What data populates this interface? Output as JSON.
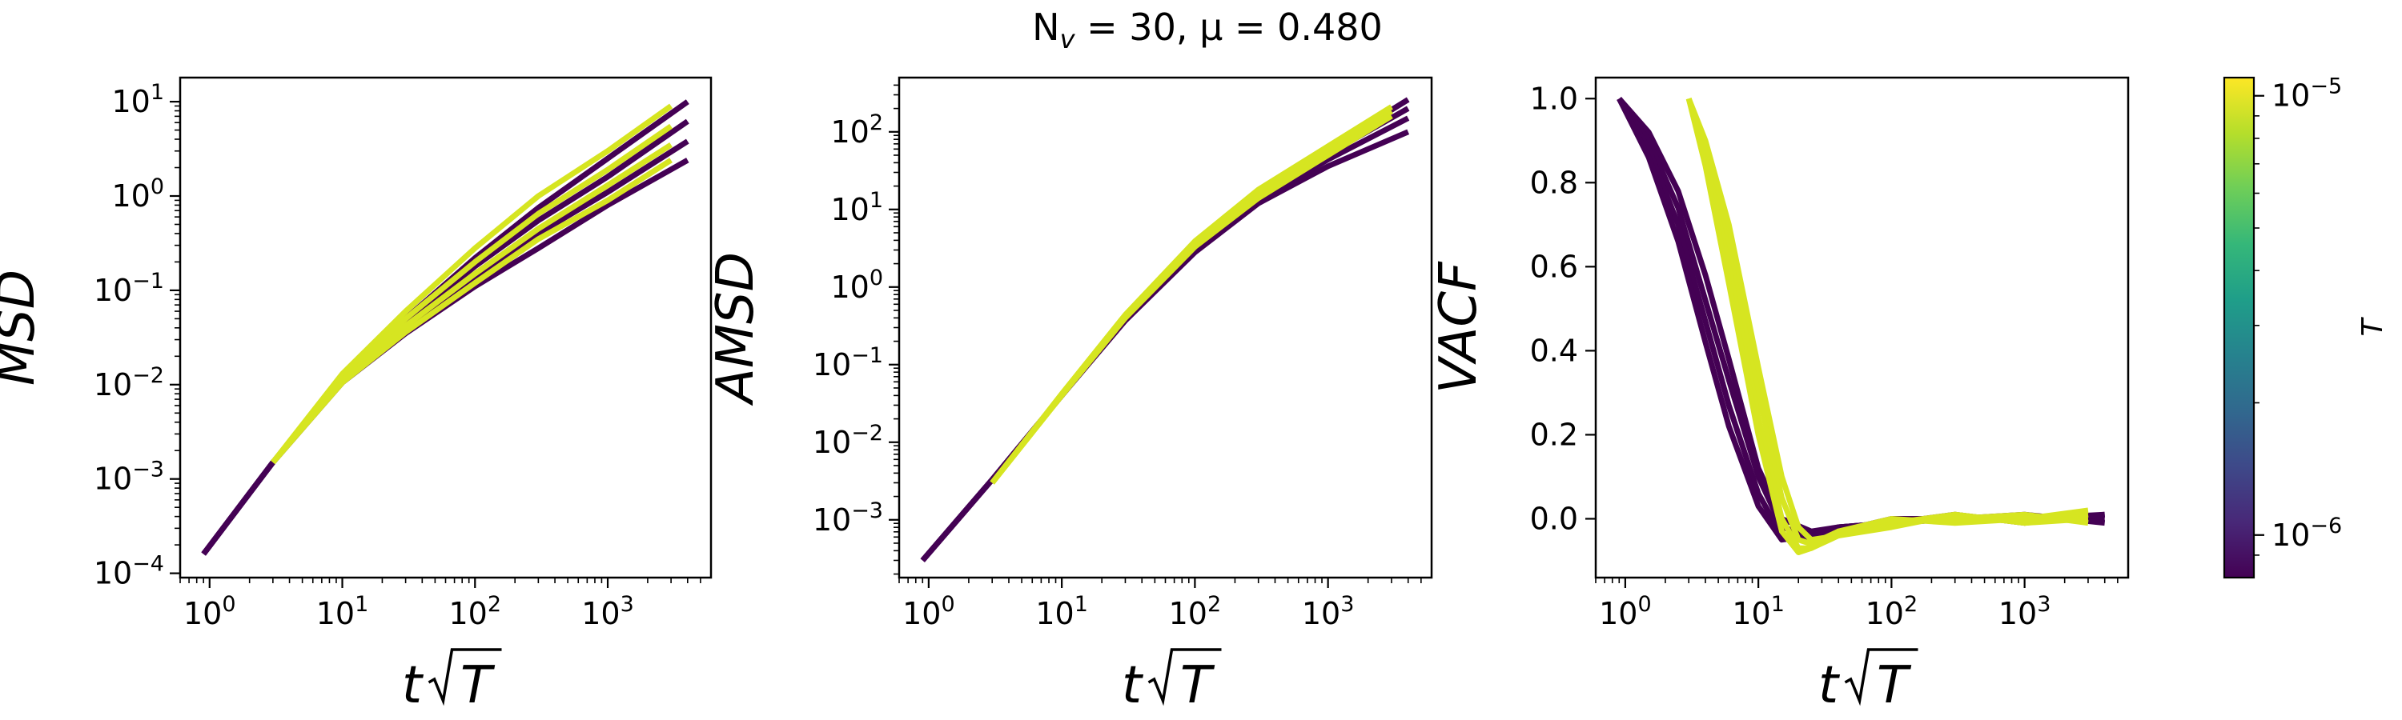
{
  "figure": {
    "title": "N_v = 30, μ = 0.480",
    "title_parts": {
      "main": "N",
      "sub": "v",
      "rest": " = 30, μ = 0.480"
    }
  },
  "colorbar": {
    "label": "T",
    "scale": "log",
    "range": [
      8e-07,
      1.1e-05
    ],
    "ticks": [
      {
        "value": 1e-05,
        "base": "10",
        "exp": "−5"
      },
      {
        "value": 1e-06,
        "base": "10",
        "exp": "−6"
      }
    ],
    "colormap": [
      "#440154",
      "#482878",
      "#3e4989",
      "#31688e",
      "#26828e",
      "#1f9e89",
      "#35b779",
      "#6ece58",
      "#b5de2b",
      "#fde725"
    ]
  },
  "x_axis_label": {
    "main": "t",
    "radical": "T"
  },
  "chart_data": [
    {
      "type": "line",
      "ylabel": "MSD",
      "xscale": "log",
      "yscale": "log",
      "xlim": [
        0.6,
        6000
      ],
      "ylim": [
        9e-05,
        18
      ],
      "xticks": [
        {
          "value": 1,
          "base": "10",
          "exp": "0"
        },
        {
          "value": 10,
          "base": "10",
          "exp": "1"
        },
        {
          "value": 100,
          "base": "10",
          "exp": "2"
        },
        {
          "value": 1000,
          "base": "10",
          "exp": "3"
        }
      ],
      "yticks": [
        {
          "value": 0.0001,
          "base": "10",
          "exp": "−4"
        },
        {
          "value": 0.001,
          "base": "10",
          "exp": "−3"
        },
        {
          "value": 0.01,
          "base": "10",
          "exp": "−2"
        },
        {
          "value": 0.1,
          "base": "10",
          "exp": "−1"
        },
        {
          "value": 1,
          "base": "10",
          "exp": "0"
        },
        {
          "value": 10,
          "base": "10",
          "exp": "1"
        }
      ],
      "series": [
        {
          "color": "#440154",
          "x": [
            0.9,
            3,
            10,
            30,
            100,
            300,
            1000,
            4000
          ],
          "y": [
            0.00016,
            0.0015,
            0.0115,
            0.045,
            0.18,
            0.55,
            1.6,
            6.2
          ]
        },
        {
          "color": "#440154",
          "x": [
            0.9,
            3,
            10,
            30,
            100,
            300,
            1000,
            4000
          ],
          "y": [
            0.00016,
            0.0015,
            0.011,
            0.04,
            0.14,
            0.4,
            1.1,
            3.8
          ]
        },
        {
          "color": "#440154",
          "x": [
            0.9,
            3,
            10,
            30,
            100,
            300,
            1000,
            4000
          ],
          "y": [
            0.00016,
            0.0015,
            0.0105,
            0.035,
            0.11,
            0.28,
            0.8,
            2.4
          ]
        },
        {
          "color": "#440154",
          "x": [
            0.9,
            3,
            10,
            30,
            100,
            300,
            1000,
            4000
          ],
          "y": [
            0.00016,
            0.0015,
            0.012,
            0.05,
            0.22,
            0.75,
            2.5,
            10
          ]
        },
        {
          "color": "#d6e521",
          "x": [
            3,
            10,
            30,
            100,
            300,
            1000,
            3000
          ],
          "y": [
            0.0015,
            0.013,
            0.06,
            0.28,
            1.0,
            3.0,
            9
          ]
        },
        {
          "color": "#d6e521",
          "x": [
            3,
            10,
            30,
            100,
            300,
            1000,
            3000
          ],
          "y": [
            0.0015,
            0.012,
            0.05,
            0.2,
            0.65,
            1.9,
            5.5
          ]
        },
        {
          "color": "#d6e521",
          "x": [
            3,
            10,
            30,
            100,
            300,
            1000,
            3000
          ],
          "y": [
            0.0015,
            0.011,
            0.042,
            0.15,
            0.45,
            1.3,
            3.5
          ]
        },
        {
          "color": "#d6e521",
          "x": [
            3,
            10,
            30,
            100,
            300,
            1000,
            3000
          ],
          "y": [
            0.0015,
            0.0105,
            0.036,
            0.12,
            0.35,
            0.9,
            2.4
          ]
        }
      ]
    },
    {
      "type": "line",
      "ylabel": "AMSD",
      "xscale": "log",
      "yscale": "log",
      "xlim": [
        0.6,
        6000
      ],
      "ylim": [
        0.00018,
        500
      ],
      "xticks": [
        {
          "value": 1,
          "base": "10",
          "exp": "0"
        },
        {
          "value": 10,
          "base": "10",
          "exp": "1"
        },
        {
          "value": 100,
          "base": "10",
          "exp": "2"
        },
        {
          "value": 1000,
          "base": "10",
          "exp": "3"
        }
      ],
      "yticks": [
        {
          "value": 0.001,
          "base": "10",
          "exp": "−3"
        },
        {
          "value": 0.01,
          "base": "10",
          "exp": "−2"
        },
        {
          "value": 0.1,
          "base": "10",
          "exp": "−1"
        },
        {
          "value": 1,
          "base": "10",
          "exp": "0"
        },
        {
          "value": 10,
          "base": "10",
          "exp": "1"
        },
        {
          "value": 100,
          "base": "10",
          "exp": "2"
        }
      ],
      "series": [
        {
          "color": "#440154",
          "x": [
            0.9,
            3,
            10,
            30,
            100,
            300,
            1000,
            4000
          ],
          "y": [
            0.0003,
            0.0033,
            0.04,
            0.37,
            2.8,
            12,
            36,
            100
          ]
        },
        {
          "color": "#440154",
          "x": [
            0.9,
            3,
            10,
            30,
            100,
            300,
            1000,
            4000
          ],
          "y": [
            0.0003,
            0.0033,
            0.04,
            0.38,
            3.0,
            13,
            44,
            150
          ]
        },
        {
          "color": "#440154",
          "x": [
            0.9,
            3,
            10,
            30,
            100,
            300,
            1000,
            4000
          ],
          "y": [
            0.0003,
            0.0033,
            0.04,
            0.39,
            3.2,
            14,
            52,
            200
          ]
        },
        {
          "color": "#440154",
          "x": [
            0.9,
            3,
            10,
            30,
            100,
            300,
            1000,
            4000
          ],
          "y": [
            0.0003,
            0.0033,
            0.04,
            0.4,
            3.4,
            15,
            60,
            260
          ]
        },
        {
          "color": "#d6e521",
          "x": [
            3,
            10,
            30,
            100,
            300,
            1000,
            3000
          ],
          "y": [
            0.003,
            0.04,
            0.4,
            3.3,
            14,
            50,
            160
          ]
        },
        {
          "color": "#d6e521",
          "x": [
            3,
            10,
            30,
            100,
            300,
            1000,
            3000
          ],
          "y": [
            0.003,
            0.041,
            0.42,
            3.6,
            16,
            58,
            185
          ]
        },
        {
          "color": "#d6e521",
          "x": [
            3,
            10,
            30,
            100,
            300,
            1000,
            3000
          ],
          "y": [
            0.003,
            0.042,
            0.44,
            3.9,
            18,
            65,
            210
          ]
        }
      ]
    },
    {
      "type": "line",
      "ylabel": "VACF",
      "xscale": "log",
      "yscale": "linear",
      "xlim": [
        0.6,
        6000
      ],
      "ylim": [
        -0.14,
        1.05
      ],
      "xticks": [
        {
          "value": 1,
          "base": "10",
          "exp": "0"
        },
        {
          "value": 10,
          "base": "10",
          "exp": "1"
        },
        {
          "value": 100,
          "base": "10",
          "exp": "2"
        },
        {
          "value": 1000,
          "base": "10",
          "exp": "3"
        }
      ],
      "yticks": [
        {
          "value": 0.0,
          "label": "0.0"
        },
        {
          "value": 0.2,
          "label": "0.2"
        },
        {
          "value": 0.4,
          "label": "0.4"
        },
        {
          "value": 0.6,
          "label": "0.6"
        },
        {
          "value": 0.8,
          "label": "0.8"
        },
        {
          "value": 1.0,
          "label": "1.0"
        }
      ],
      "series": [
        {
          "color": "#440154",
          "x": [
            0.9,
            1.5,
            2.5,
            4,
            6,
            10,
            15,
            25,
            40,
            100,
            300,
            1000,
            4000
          ],
          "y": [
            1.0,
            0.92,
            0.78,
            0.58,
            0.38,
            0.12,
            0.0,
            -0.03,
            -0.02,
            -0.01,
            0.0,
            0.0,
            0.0
          ]
        },
        {
          "color": "#440154",
          "x": [
            0.9,
            1.5,
            2.5,
            4,
            6,
            10,
            15,
            25,
            40,
            100,
            300,
            1000,
            4000
          ],
          "y": [
            1.0,
            0.9,
            0.74,
            0.52,
            0.33,
            0.1,
            -0.02,
            -0.04,
            -0.02,
            -0.01,
            0.01,
            -0.01,
            0.01
          ]
        },
        {
          "color": "#440154",
          "x": [
            0.9,
            1.5,
            2.5,
            4,
            6,
            10,
            15,
            25,
            40,
            100,
            300,
            1000,
            4000
          ],
          "y": [
            1.0,
            0.88,
            0.7,
            0.47,
            0.27,
            0.06,
            -0.04,
            -0.05,
            -0.03,
            0.0,
            0.0,
            0.01,
            -0.01
          ]
        },
        {
          "color": "#440154",
          "x": [
            0.9,
            1.5,
            2.5,
            4,
            6,
            10,
            15,
            25,
            40,
            100,
            300,
            1000,
            4000
          ],
          "y": [
            1.0,
            0.86,
            0.66,
            0.42,
            0.22,
            0.03,
            -0.05,
            -0.04,
            -0.02,
            -0.01,
            0.0,
            0.0,
            0.01
          ]
        },
        {
          "color": "#d6e521",
          "x": [
            3,
            4,
            6,
            10,
            15,
            20,
            25,
            40,
            100,
            300,
            1000,
            3000
          ],
          "y": [
            1.0,
            0.88,
            0.65,
            0.3,
            0.05,
            -0.05,
            -0.06,
            -0.03,
            -0.01,
            0.01,
            -0.01,
            0.01
          ]
        },
        {
          "color": "#d6e521",
          "x": [
            3,
            4,
            6,
            10,
            15,
            20,
            25,
            40,
            100,
            300,
            1000,
            3000
          ],
          "y": [
            1.0,
            0.86,
            0.6,
            0.24,
            0.0,
            -0.07,
            -0.07,
            -0.04,
            -0.01,
            0.0,
            0.01,
            -0.01
          ]
        },
        {
          "color": "#d6e521",
          "x": [
            3,
            4,
            6,
            10,
            15,
            20,
            25,
            40,
            100,
            300,
            1000,
            3000
          ],
          "y": [
            1.0,
            0.84,
            0.56,
            0.2,
            -0.03,
            -0.08,
            -0.07,
            -0.03,
            0.0,
            -0.01,
            0.0,
            0.02
          ]
        },
        {
          "color": "#d6e521",
          "x": [
            3,
            4,
            6,
            10,
            15,
            20,
            25,
            40,
            100,
            300,
            1000,
            3000
          ],
          "y": [
            1.0,
            0.9,
            0.7,
            0.36,
            0.1,
            -0.02,
            -0.05,
            -0.04,
            -0.02,
            0.01,
            -0.01,
            0.0
          ]
        }
      ]
    }
  ]
}
